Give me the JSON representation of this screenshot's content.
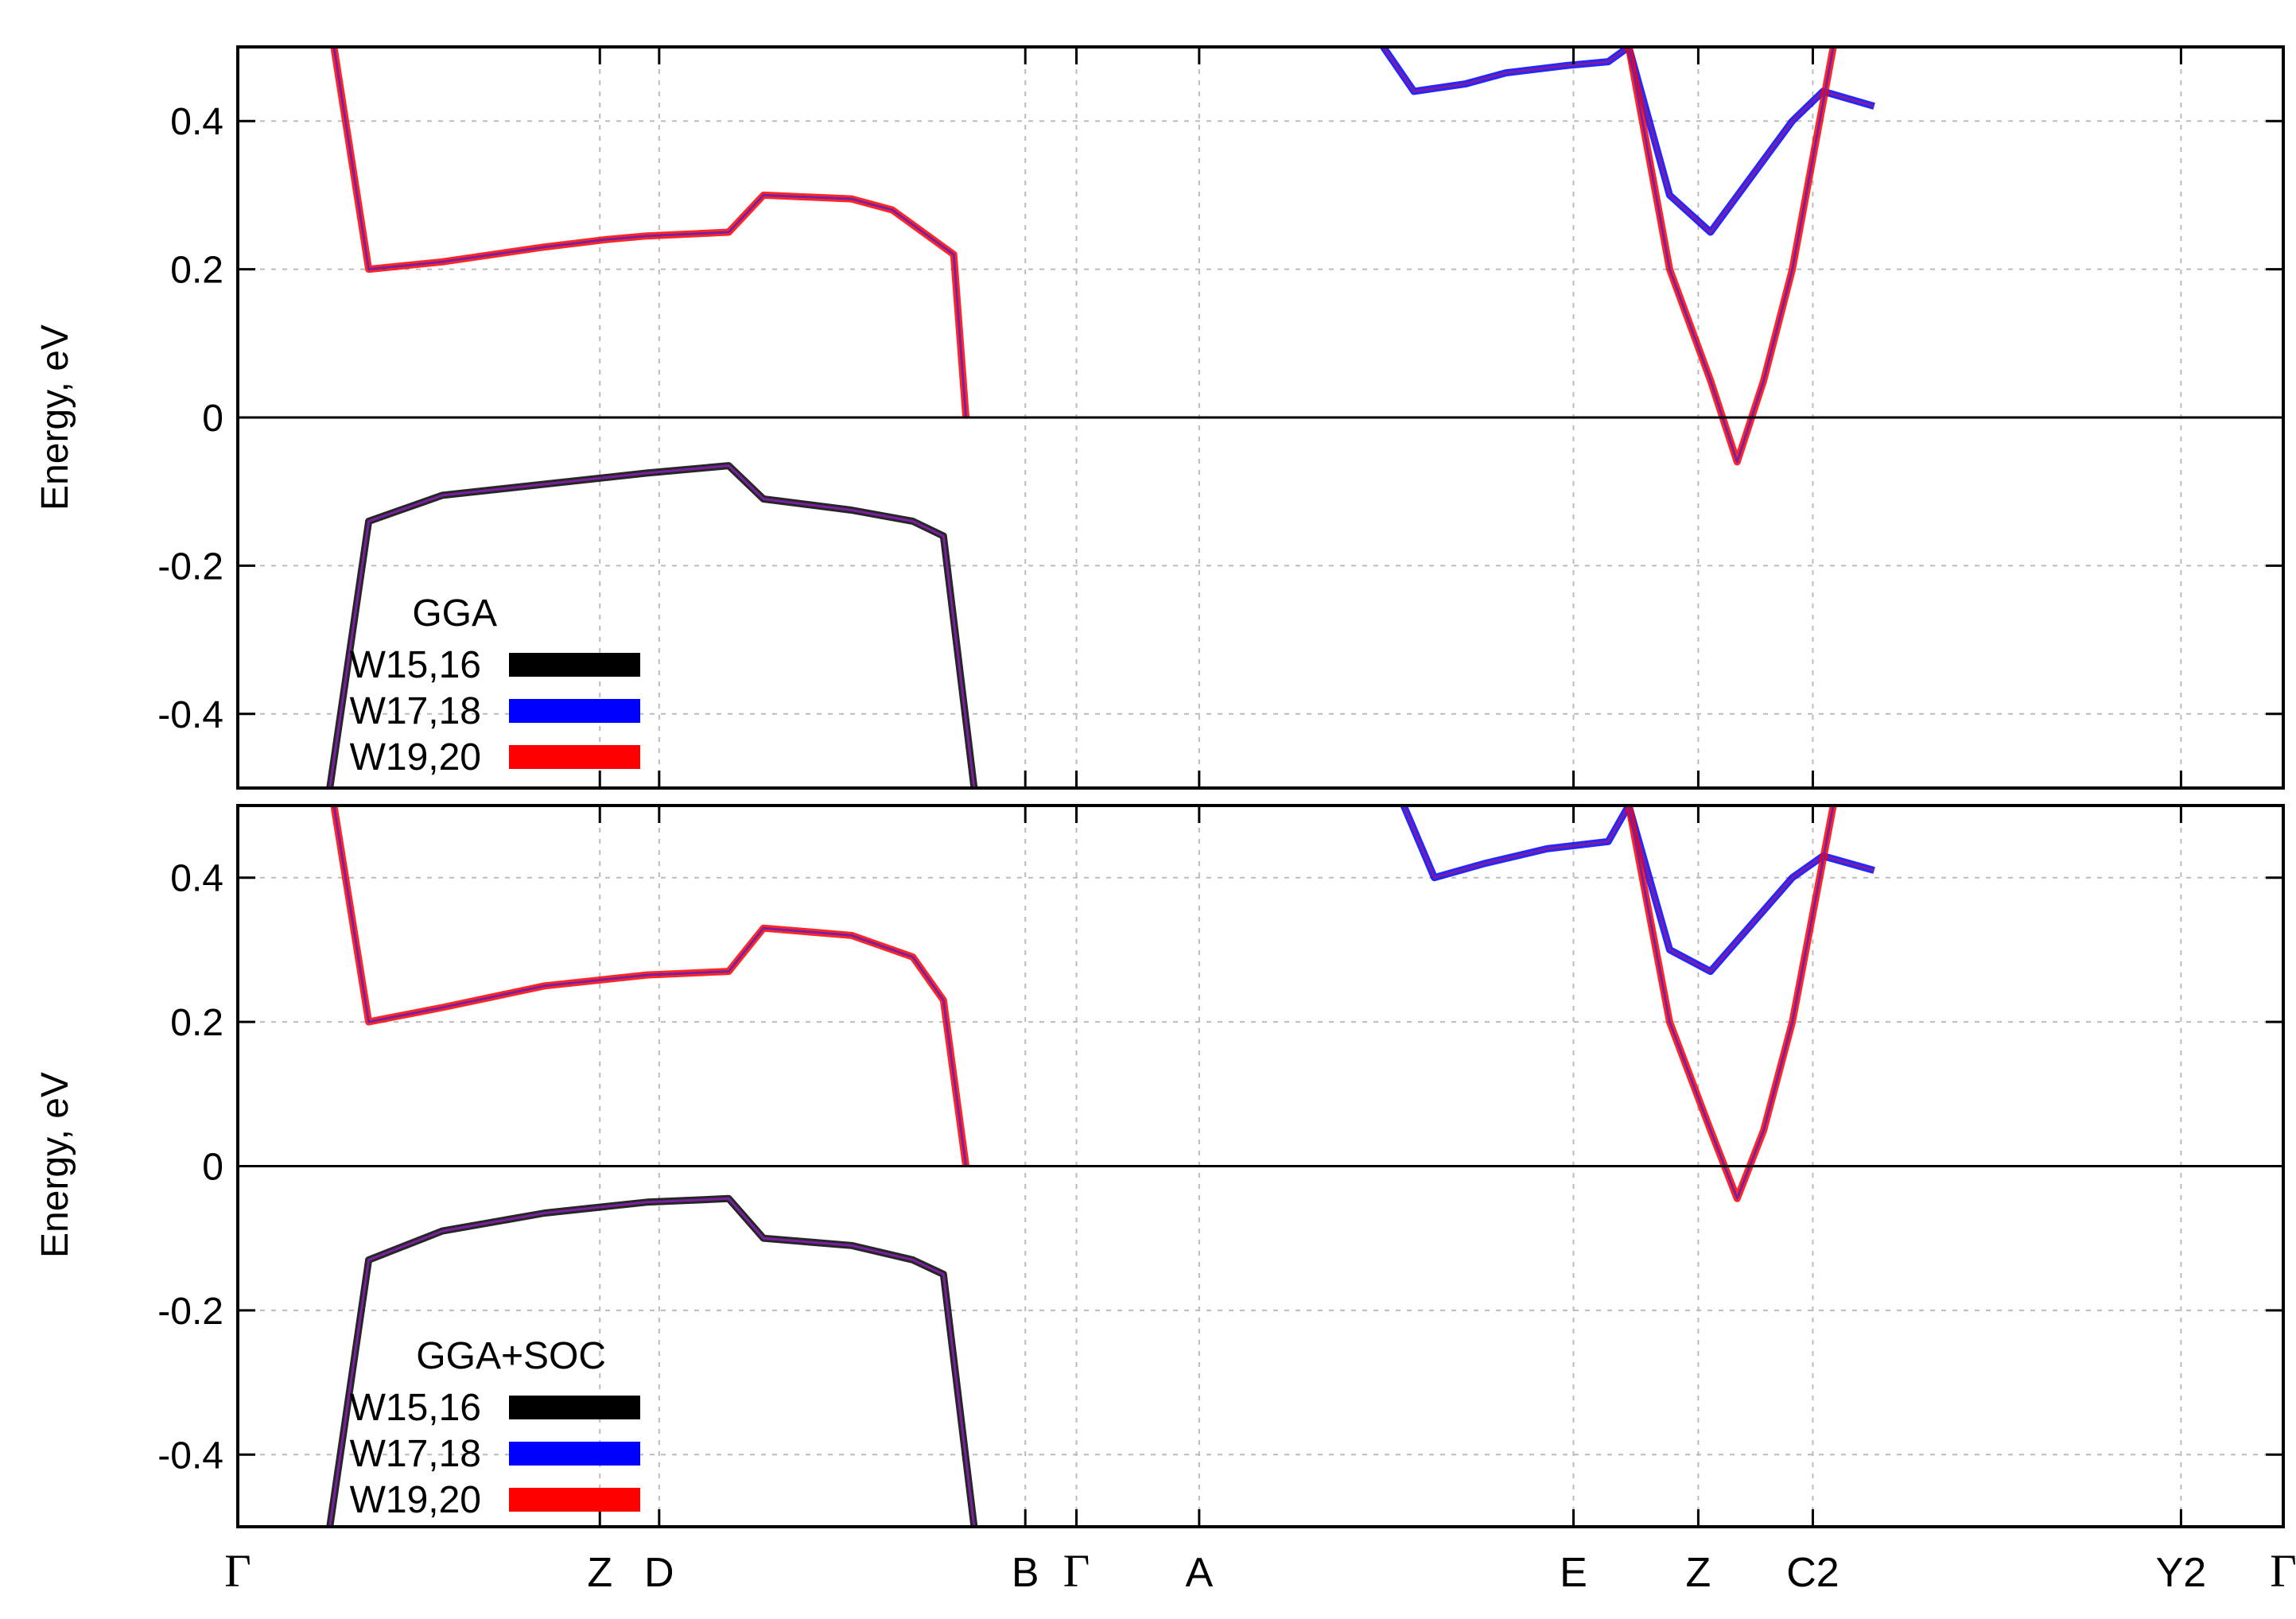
{
  "chart_data": [
    {
      "type": "line",
      "panel": "top",
      "legend_title": "GGA",
      "ylabel": "Energy, eV",
      "ylim": [
        -0.5,
        0.5
      ],
      "yticks": [
        0.4,
        0.2,
        0,
        -0.2,
        -0.4
      ],
      "ytick_labels": [
        "0.4",
        "0.2",
        "0",
        "-0.2",
        "-0.4"
      ],
      "xlim": [
        0,
        1
      ],
      "legend_placement": "bottom-left",
      "series": [
        {
          "name": "W15,16",
          "color": "#000000"
        },
        {
          "name": "W17,18",
          "color": "#0000ff"
        },
        {
          "name": "W19,20",
          "color": "#ff0000"
        }
      ],
      "bands": [
        {
          "x": [
            0.047,
            0.064,
            0.1,
            0.15,
            0.18,
            0.2,
            0.24,
            0.257,
            0.3,
            0.32,
            0.33,
            0.35,
            0.356
          ],
          "y": [
            0.5,
            0.2,
            0.21,
            0.23,
            0.24,
            0.245,
            0.25,
            0.3,
            0.295,
            0.28,
            0.26,
            0.22,
            0.0
          ]
        },
        {
          "x": [
            0.045,
            0.064,
            0.1,
            0.15,
            0.2,
            0.24,
            0.257,
            0.3,
            0.33,
            0.345,
            0.36
          ],
          "y": [
            -0.5,
            -0.14,
            -0.105,
            -0.09,
            -0.075,
            -0.065,
            -0.11,
            -0.125,
            -0.14,
            -0.16,
            -0.5
          ]
        },
        {
          "x": [
            0.56,
            0.575,
            0.6,
            0.62,
            0.65,
            0.67,
            0.68,
            0.7,
            0.72,
            0.76,
            0.775,
            0.8
          ],
          "y": [
            0.5,
            0.44,
            0.45,
            0.465,
            0.475,
            0.48,
            0.5,
            0.3,
            0.25,
            0.4,
            0.44,
            0.42
          ]
        },
        {
          "x": [
            0.68,
            0.7,
            0.72,
            0.733,
            0.746,
            0.76,
            0.78
          ],
          "y": [
            0.5,
            0.2,
            0.05,
            -0.06,
            0.05,
            0.2,
            0.5
          ]
        }
      ]
    },
    {
      "type": "line",
      "panel": "bottom",
      "legend_title": "GGA+SOC",
      "ylabel": "Energy, eV",
      "ylim": [
        -0.5,
        0.5
      ],
      "yticks": [
        0.4,
        0.2,
        0,
        -0.2,
        -0.4
      ],
      "ytick_labels": [
        "0.4",
        "0.2",
        "0",
        "-0.2",
        "-0.4"
      ],
      "xlim": [
        0,
        1
      ],
      "legend_placement": "bottom-left",
      "series": [
        {
          "name": "W15,16",
          "color": "#000000"
        },
        {
          "name": "W17,18",
          "color": "#0000ff"
        },
        {
          "name": "W19,20",
          "color": "#ff0000"
        }
      ],
      "bands": [
        {
          "x": [
            0.047,
            0.064,
            0.1,
            0.15,
            0.2,
            0.24,
            0.257,
            0.3,
            0.33,
            0.345,
            0.356
          ],
          "y": [
            0.5,
            0.2,
            0.22,
            0.25,
            0.265,
            0.27,
            0.33,
            0.32,
            0.29,
            0.23,
            0.0
          ]
        },
        {
          "x": [
            0.045,
            0.064,
            0.1,
            0.15,
            0.2,
            0.24,
            0.257,
            0.3,
            0.33,
            0.345,
            0.36
          ],
          "y": [
            -0.5,
            -0.13,
            -0.09,
            -0.065,
            -0.05,
            -0.045,
            -0.1,
            -0.11,
            -0.13,
            -0.15,
            -0.5
          ]
        },
        {
          "x": [
            0.57,
            0.585,
            0.61,
            0.64,
            0.67,
            0.68,
            0.7,
            0.72,
            0.76,
            0.775,
            0.8
          ],
          "y": [
            0.5,
            0.4,
            0.42,
            0.44,
            0.45,
            0.5,
            0.3,
            0.27,
            0.4,
            0.43,
            0.41
          ]
        },
        {
          "x": [
            0.68,
            0.7,
            0.72,
            0.733,
            0.746,
            0.76,
            0.78
          ],
          "y": [
            0.5,
            0.2,
            0.05,
            -0.045,
            0.05,
            0.2,
            0.5
          ]
        }
      ]
    }
  ],
  "kpoints": [
    {
      "label": "Γ",
      "x": 0.0,
      "greek": true
    },
    {
      "label": "Z",
      "x": 0.177
    },
    {
      "label": "D",
      "x": 0.206
    },
    {
      "label": "B",
      "x": 0.385
    },
    {
      "label": "Γ",
      "x": 0.41,
      "greek": true
    },
    {
      "label": "A",
      "x": 0.47
    },
    {
      "label": "E",
      "x": 0.653
    },
    {
      "label": "Z",
      "x": 0.714
    },
    {
      "label": "C2",
      "x": 0.77
    },
    {
      "label": "Y2",
      "x": 0.95
    },
    {
      "label": "Γ",
      "x": 1.0,
      "greek": true
    }
  ]
}
